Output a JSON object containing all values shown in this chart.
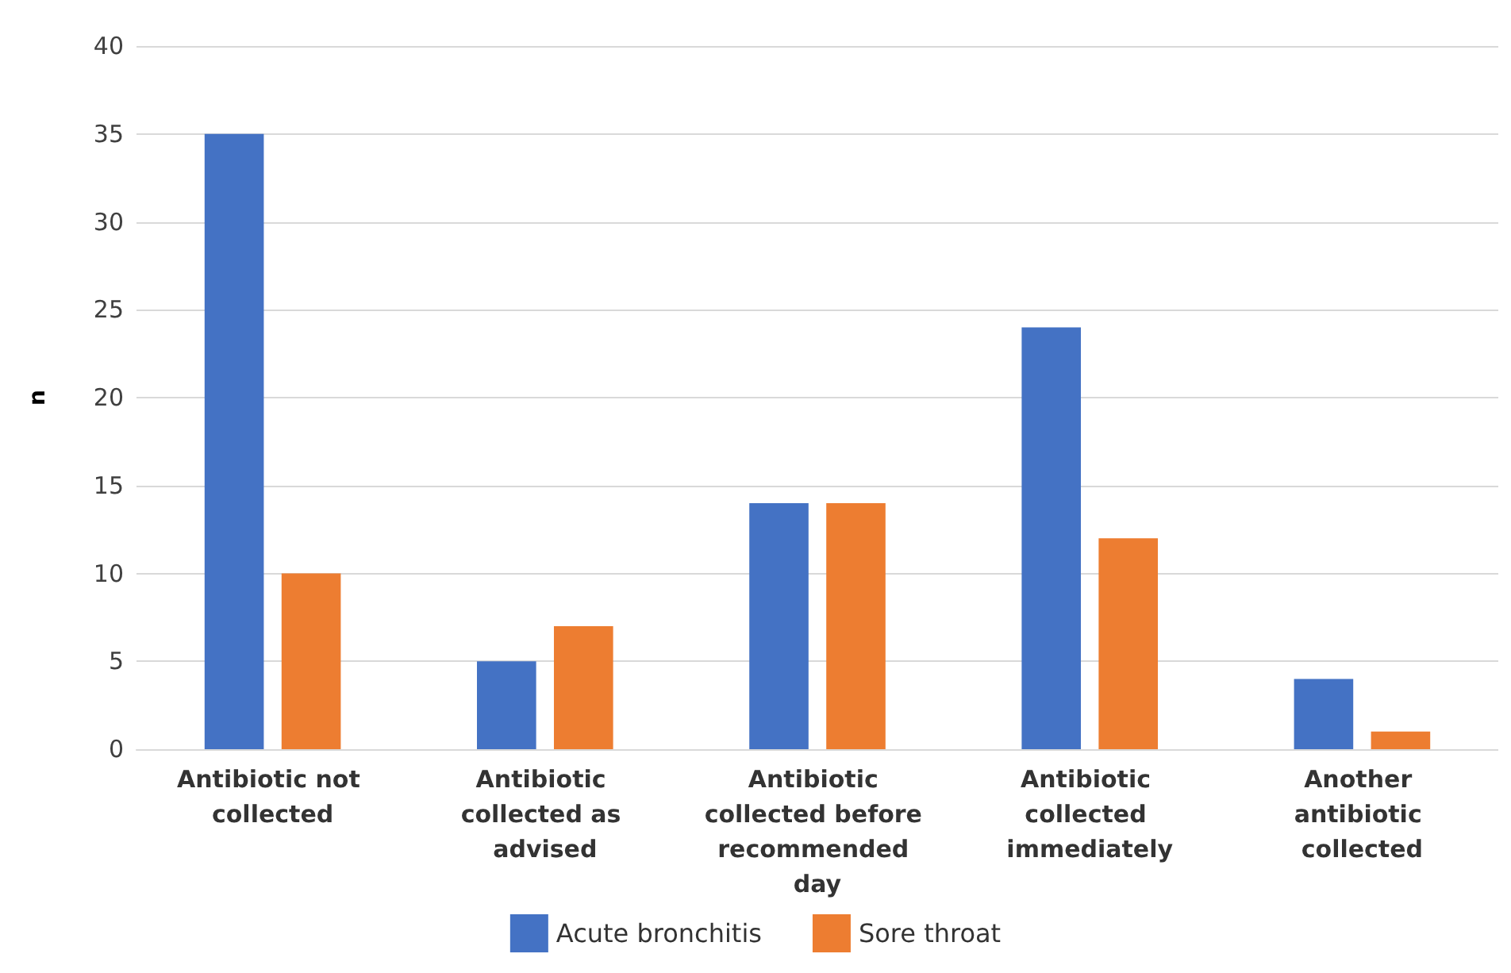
{
  "chart_data": {
    "type": "bar",
    "ylabel": "n",
    "categories": [
      "Antibiotic not collected",
      "Antibiotic collected as advised",
      "Antibiotic collected before recommended day",
      "Antibiotic collected immediately",
      "Another antibiotic collected"
    ],
    "series": [
      {
        "name": "Acute bronchitis",
        "color": "#4472c4",
        "values": [
          35,
          5,
          14,
          24,
          4
        ]
      },
      {
        "name": "Sore throat",
        "color": "#ed7d31",
        "values": [
          10,
          7,
          14,
          12,
          1
        ]
      }
    ],
    "ylim": [
      0,
      40
    ],
    "yticks": [
      0,
      5,
      10,
      15,
      20,
      25,
      30,
      35,
      40
    ],
    "grid": "y",
    "legend": "bottom"
  }
}
